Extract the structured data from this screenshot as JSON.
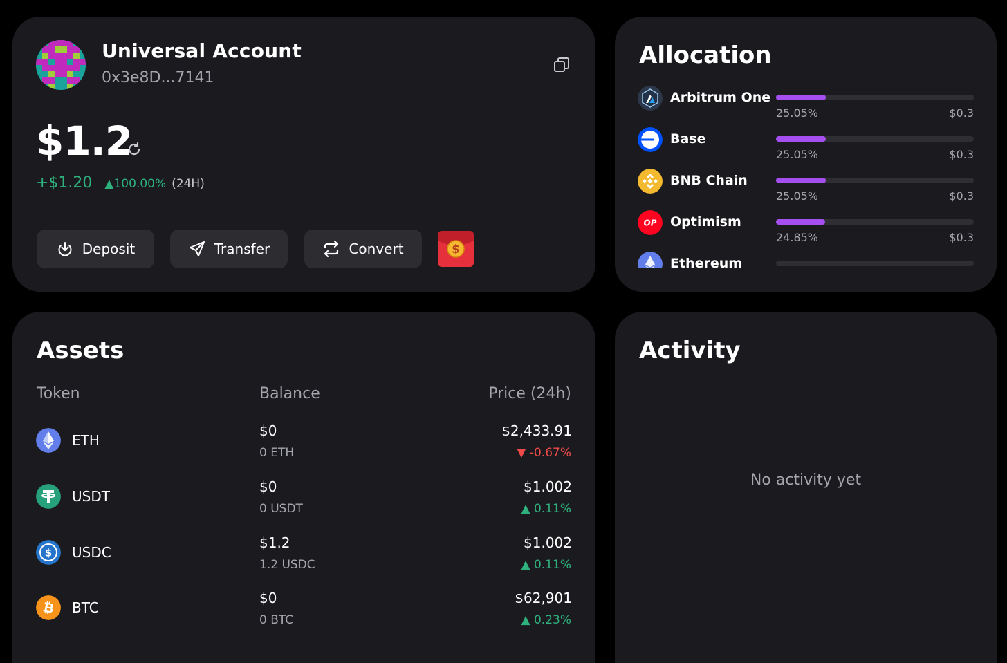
{
  "account": {
    "name": "Universal Account",
    "address": "0x3e8D...7141",
    "balance": "$1.2",
    "change_amount": "+$1.20",
    "change_percent": "▲100.00%",
    "change_period": "(24H)",
    "actions": {
      "deposit": "Deposit",
      "transfer": "Transfer",
      "convert": "Convert"
    }
  },
  "allocation": {
    "title": "Allocation",
    "items": [
      {
        "name": "Arbitrum One",
        "percent": "25.05%",
        "value": "$0.3",
        "fraction": 0.2505,
        "icon": "arbitrum-icon"
      },
      {
        "name": "Base",
        "percent": "25.05%",
        "value": "$0.3",
        "fraction": 0.2505,
        "icon": "base-icon"
      },
      {
        "name": "BNB Chain",
        "percent": "25.05%",
        "value": "$0.3",
        "fraction": 0.2505,
        "icon": "bnb-icon"
      },
      {
        "name": "Optimism",
        "percent": "24.85%",
        "value": "$0.3",
        "fraction": 0.2485,
        "icon": "optimism-icon"
      },
      {
        "name": "Ethereum",
        "percent": "",
        "value": "",
        "fraction": 0,
        "icon": "ethereum-icon"
      }
    ],
    "bar_color": "#a64ff1"
  },
  "assets": {
    "title": "Assets",
    "columns": {
      "token": "Token",
      "balance": "Balance",
      "price": "Price (24h)"
    },
    "rows": [
      {
        "symbol": "ETH",
        "usd": "$0",
        "qty": "0 ETH",
        "price": "$2,433.91",
        "change": "▼ -0.67%",
        "direction": "down",
        "icon": "eth-icon"
      },
      {
        "symbol": "USDT",
        "usd": "$0",
        "qty": "0 USDT",
        "price": "$1.002",
        "change": "▲ 0.11%",
        "direction": "up",
        "icon": "usdt-icon"
      },
      {
        "symbol": "USDC",
        "usd": "$1.2",
        "qty": "1.2 USDC",
        "price": "$1.002",
        "change": "▲ 0.11%",
        "direction": "up",
        "icon": "usdc-icon"
      },
      {
        "symbol": "BTC",
        "usd": "$0",
        "qty": "0 BTC",
        "price": "$62,901",
        "change": "▲ 0.23%",
        "direction": "up",
        "icon": "btc-icon"
      }
    ]
  },
  "activity": {
    "title": "Activity",
    "empty_message": "No activity yet"
  },
  "colors": {
    "background": "#000000",
    "card": "#1b1b1f",
    "positive": "#2fb17e",
    "negative": "#ef4a4a",
    "accent": "#a64ff1"
  }
}
